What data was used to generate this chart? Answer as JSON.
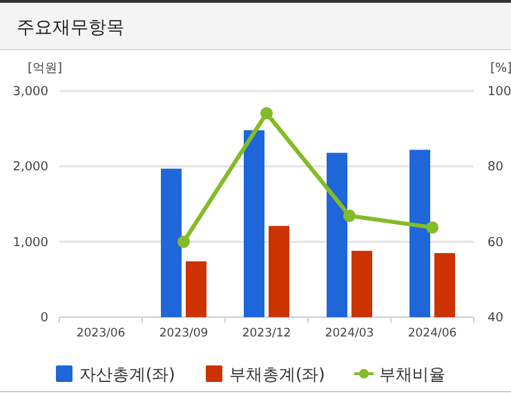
{
  "chart_data": {
    "type": "bar",
    "title": "주요재무항목",
    "ylabel": "[억원]",
    "y2label": "[%]",
    "categories": [
      "2023/06",
      "2023/09",
      "2023/12",
      "2024/03",
      "2024/06"
    ],
    "series": [
      {
        "name": "자산총계(좌)",
        "color": "#1f66d9",
        "values": [
          null,
          1970,
          2480,
          2180,
          2220
        ]
      },
      {
        "name": "부채총계(좌)",
        "color": "#cc3300",
        "values": [
          null,
          740,
          1210,
          880,
          850
        ]
      },
      {
        "name": "부채비율",
        "type": "line",
        "axis": "y2",
        "color": "#84bb28",
        "marker": "circle",
        "values": [
          null,
          60.0,
          94.1,
          66.9,
          63.8
        ]
      }
    ],
    "ylim": [
      0,
      3000
    ],
    "yticks": [
      {
        "value": 0,
        "label": "0"
      },
      {
        "value": 1000,
        "label": "1,000"
      },
      {
        "value": 2000,
        "label": "2,000"
      },
      {
        "value": 3000,
        "label": "3,000"
      }
    ],
    "y2lim": [
      40,
      100
    ],
    "y2ticks": [
      40,
      60,
      80,
      100
    ],
    "grid": "y",
    "legend": "bottom"
  }
}
